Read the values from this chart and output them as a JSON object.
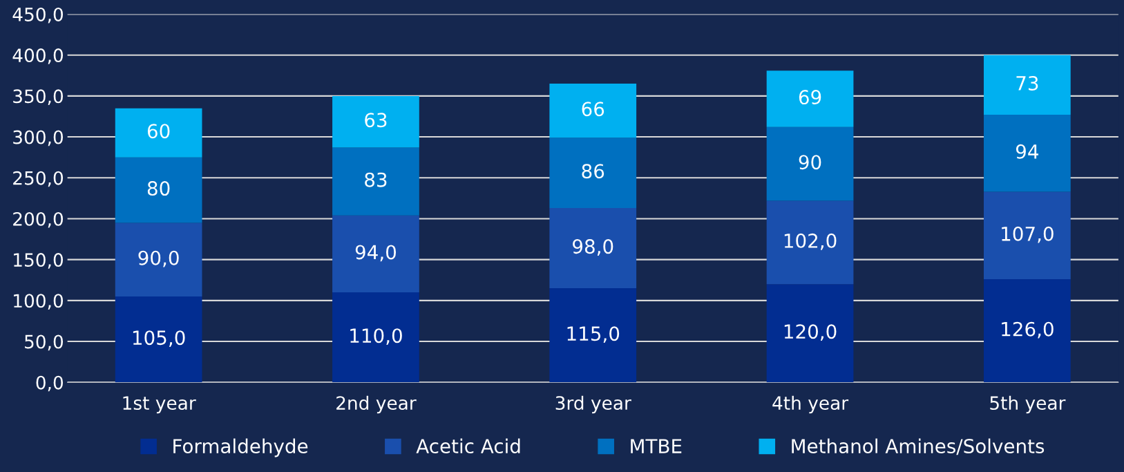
{
  "chart_data": {
    "type": "bar",
    "stacked": true,
    "categories": [
      "1st year",
      "2nd year",
      "3rd year",
      "4th year",
      "5th year"
    ],
    "series": [
      {
        "name": "Formaldehyde",
        "color": "#022d91",
        "values": [
          105,
          110,
          115,
          120,
          126
        ],
        "value_labels": [
          "105,0",
          "110,0",
          "115,0",
          "120,0",
          "126,0"
        ]
      },
      {
        "name": "Acetic Acid",
        "color": "#1a4fad",
        "values": [
          90,
          94,
          98,
          102,
          107
        ],
        "value_labels": [
          "90,0",
          "94,0",
          "98,0",
          "102,0",
          "107,0"
        ]
      },
      {
        "name": "MTBE",
        "color": "#0070c0",
        "values": [
          80,
          83,
          86,
          90,
          94
        ],
        "value_labels": [
          "80",
          "83",
          "86",
          "90",
          "94"
        ]
      },
      {
        "name": "Methanol Amines/Solvents",
        "color": "#00b0f0",
        "values": [
          60,
          63,
          66,
          69,
          73
        ],
        "value_labels": [
          "60",
          "63",
          "66",
          "69",
          "73"
        ]
      }
    ],
    "ylim": [
      0,
      450
    ],
    "yticks": [
      {
        "value": 0,
        "label": "0,0"
      },
      {
        "value": 50,
        "label": "50,0"
      },
      {
        "value": 100,
        "label": "100,0"
      },
      {
        "value": 150,
        "label": "150,0"
      },
      {
        "value": 200,
        "label": "200,0"
      },
      {
        "value": 250,
        "label": "250,0"
      },
      {
        "value": 300,
        "label": "300,0"
      },
      {
        "value": 350,
        "label": "350,0"
      },
      {
        "value": 400,
        "label": "400,0"
      },
      {
        "value": 450,
        "label": "450,0"
      }
    ],
    "grid": "y",
    "legend": "bottom"
  }
}
